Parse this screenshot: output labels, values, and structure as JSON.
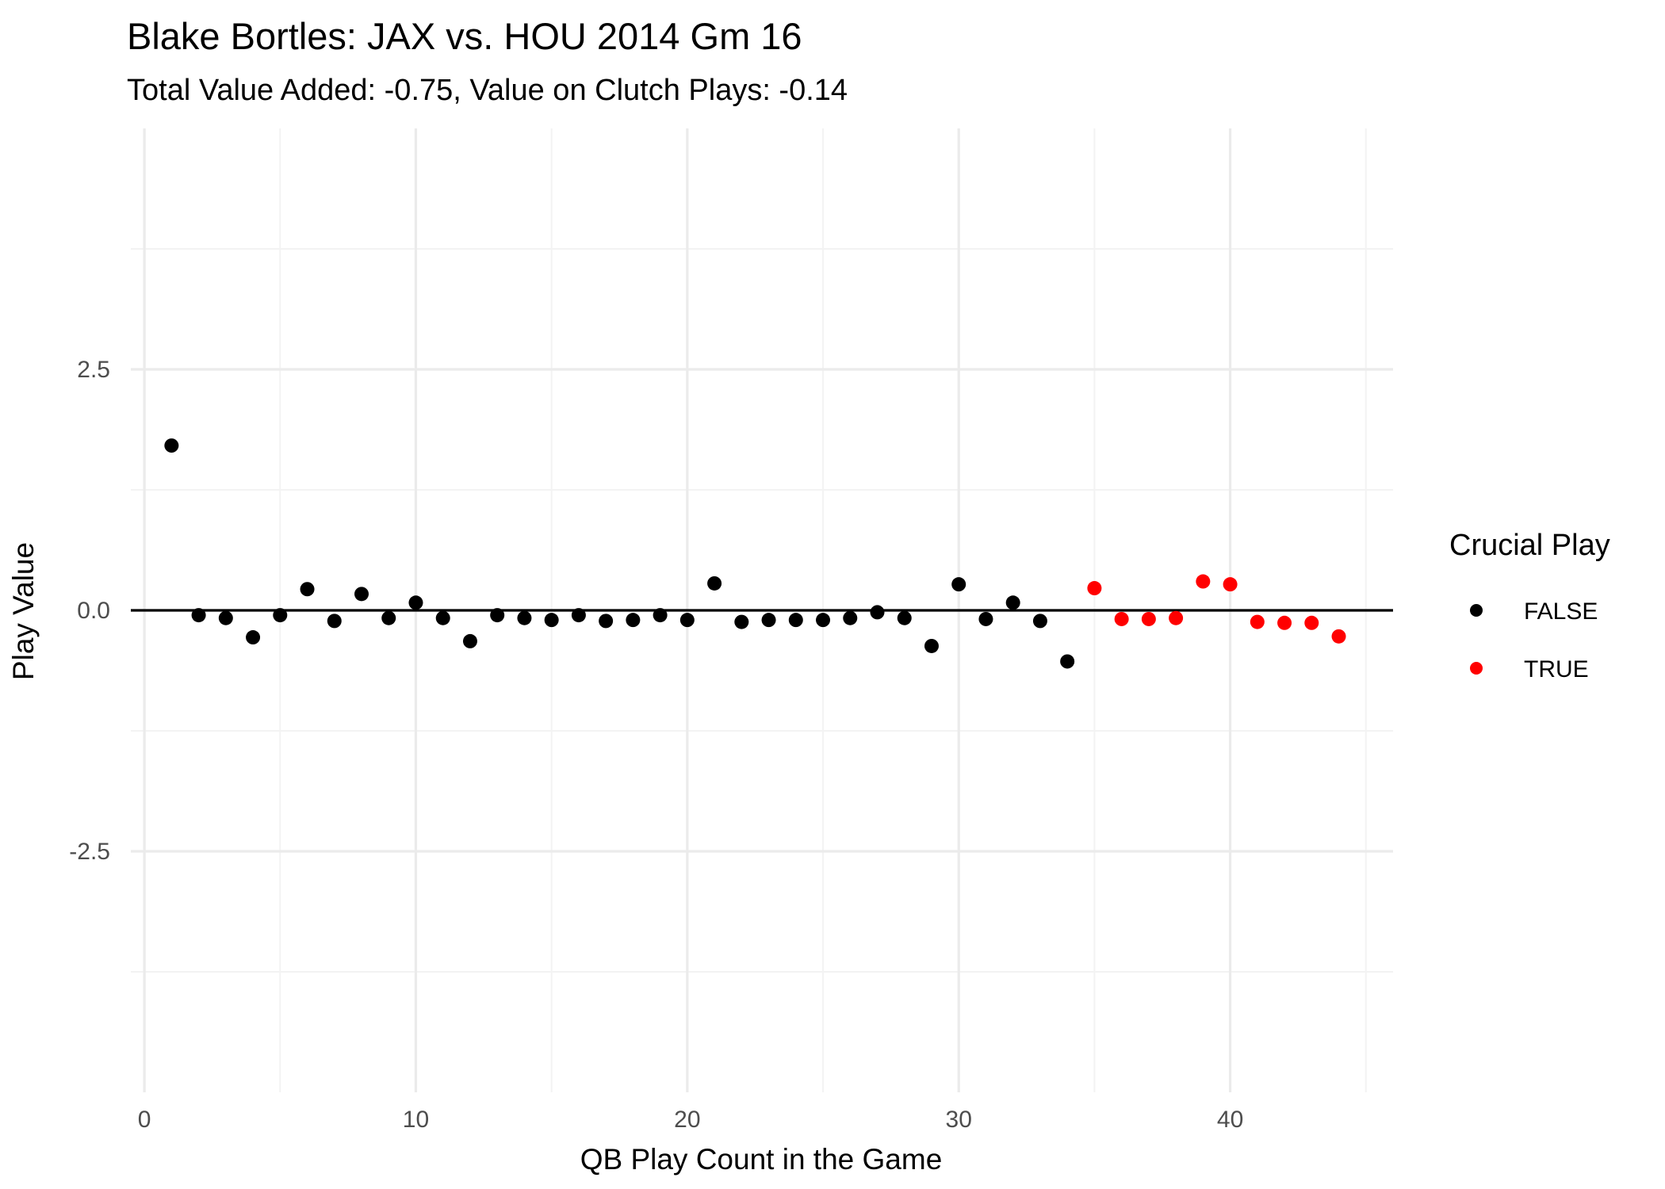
{
  "chart_data": {
    "type": "scatter",
    "title": "Blake Bortles: JAX vs. HOU 2014 Gm 16",
    "subtitle": "Total Value Added: -0.75, Value on Clutch Plays: -0.14",
    "xlabel": "QB Play Count in the Game",
    "ylabel": "Play Value",
    "xlim": [
      -0.5,
      46
    ],
    "ylim": [
      -5,
      5
    ],
    "x_ticks": [
      0,
      10,
      20,
      30,
      40
    ],
    "y_ticks": [
      2.5,
      0.0,
      -2.5
    ],
    "y_tick_labels": [
      "2.5",
      "0.0",
      "-2.5"
    ],
    "grid": true,
    "reference_line_y": 0,
    "legend": {
      "title": "Crucial Play",
      "position": "right",
      "entries": [
        {
          "label": "FALSE",
          "color": "#000000"
        },
        {
          "label": "TRUE",
          "color": "#ff0000"
        }
      ]
    },
    "series": [
      {
        "name": "FALSE",
        "color": "#000000",
        "x": [
          1,
          2,
          3,
          4,
          5,
          6,
          7,
          8,
          9,
          10,
          11,
          12,
          13,
          14,
          15,
          16,
          17,
          18,
          19,
          20,
          21,
          22,
          23,
          24,
          25,
          26,
          27,
          28,
          29,
          30,
          31,
          32,
          33,
          34
        ],
        "y": [
          1.71,
          -0.05,
          -0.08,
          -0.28,
          -0.05,
          0.22,
          -0.11,
          0.17,
          -0.08,
          0.08,
          -0.08,
          -0.32,
          -0.05,
          -0.08,
          -0.1,
          -0.05,
          -0.11,
          -0.1,
          -0.05,
          -0.1,
          0.28,
          -0.12,
          -0.1,
          -0.1,
          -0.1,
          -0.08,
          -0.02,
          -0.08,
          -0.37,
          0.27,
          -0.09,
          0.08,
          -0.11,
          -0.53
        ]
      },
      {
        "name": "TRUE",
        "color": "#ff0000",
        "x": [
          35,
          36,
          37,
          38,
          39,
          40,
          41,
          42,
          43,
          44
        ],
        "y": [
          0.23,
          -0.09,
          -0.09,
          -0.08,
          0.3,
          0.27,
          -0.12,
          -0.13,
          -0.13,
          -0.27
        ]
      }
    ]
  }
}
